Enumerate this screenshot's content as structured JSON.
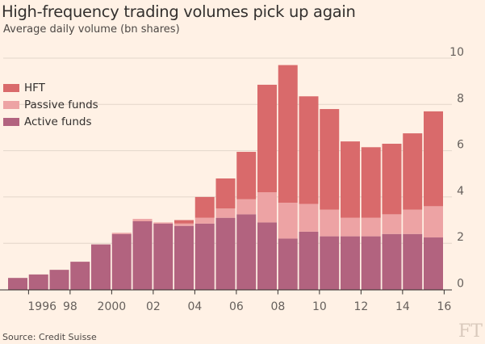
{
  "header": {
    "title": "High-frequency trading volumes pick up again",
    "subtitle": "Average daily volume (bn shares)"
  },
  "footer": {
    "source": "Source: Credit Suisse",
    "brand": "FT"
  },
  "chart_data": {
    "type": "bar",
    "stacked": true,
    "title": "High-frequency trading volumes pick up again",
    "subtitle": "Average daily volume (bn shares)",
    "xlabel": "",
    "ylabel": "",
    "categories": [
      1995,
      1996,
      1997,
      1998,
      1999,
      2000,
      2001,
      2002,
      2003,
      2004,
      2005,
      2006,
      2007,
      2008,
      2009,
      2010,
      2011,
      2012,
      2013,
      2014,
      2015,
      2016
    ],
    "x_tick_labels": [
      {
        "year": 1996,
        "label": "1996"
      },
      {
        "year": 1998,
        "label": "98"
      },
      {
        "year": 2000,
        "label": "2000"
      },
      {
        "year": 2002,
        "label": "02"
      },
      {
        "year": 2004,
        "label": "04"
      },
      {
        "year": 2006,
        "label": "06"
      },
      {
        "year": 2008,
        "label": "08"
      },
      {
        "year": 2010,
        "label": "10"
      },
      {
        "year": 2012,
        "label": "12"
      },
      {
        "year": 2014,
        "label": "14"
      },
      {
        "year": 2016,
        "label": "16"
      }
    ],
    "y_ticks": [
      "0",
      "2",
      "4",
      "6",
      "8",
      "10"
    ],
    "ylim": [
      0,
      10
    ],
    "y_axis_position": "right",
    "grid": true,
    "legend_position": "top-left",
    "series": [
      {
        "name": "Active funds",
        "color": "#b2637f",
        "values": [
          0.5,
          0.65,
          0.85,
          1.2,
          1.95,
          2.4,
          2.95,
          2.85,
          2.75,
          2.85,
          3.1,
          3.25,
          2.9,
          2.2,
          2.5,
          2.3,
          2.3,
          2.3,
          2.4,
          2.4,
          2.25,
          0
        ]
      },
      {
        "name": "Passive funds",
        "color": "#eda3a4",
        "values": [
          0,
          0,
          0,
          0,
          0,
          0.05,
          0.1,
          0.05,
          0.1,
          0.25,
          0.4,
          0.65,
          1.3,
          1.55,
          1.2,
          1.15,
          0.8,
          0.8,
          0.85,
          1.05,
          1.35,
          0
        ]
      },
      {
        "name": "HFT",
        "color": "#d96a6b",
        "values": [
          0,
          0,
          0,
          0,
          0,
          0,
          0,
          0,
          0.15,
          0.9,
          1.3,
          2.05,
          4.65,
          5.95,
          4.65,
          4.35,
          3.3,
          3.05,
          3.05,
          3.3,
          4.1,
          0
        ]
      }
    ]
  }
}
